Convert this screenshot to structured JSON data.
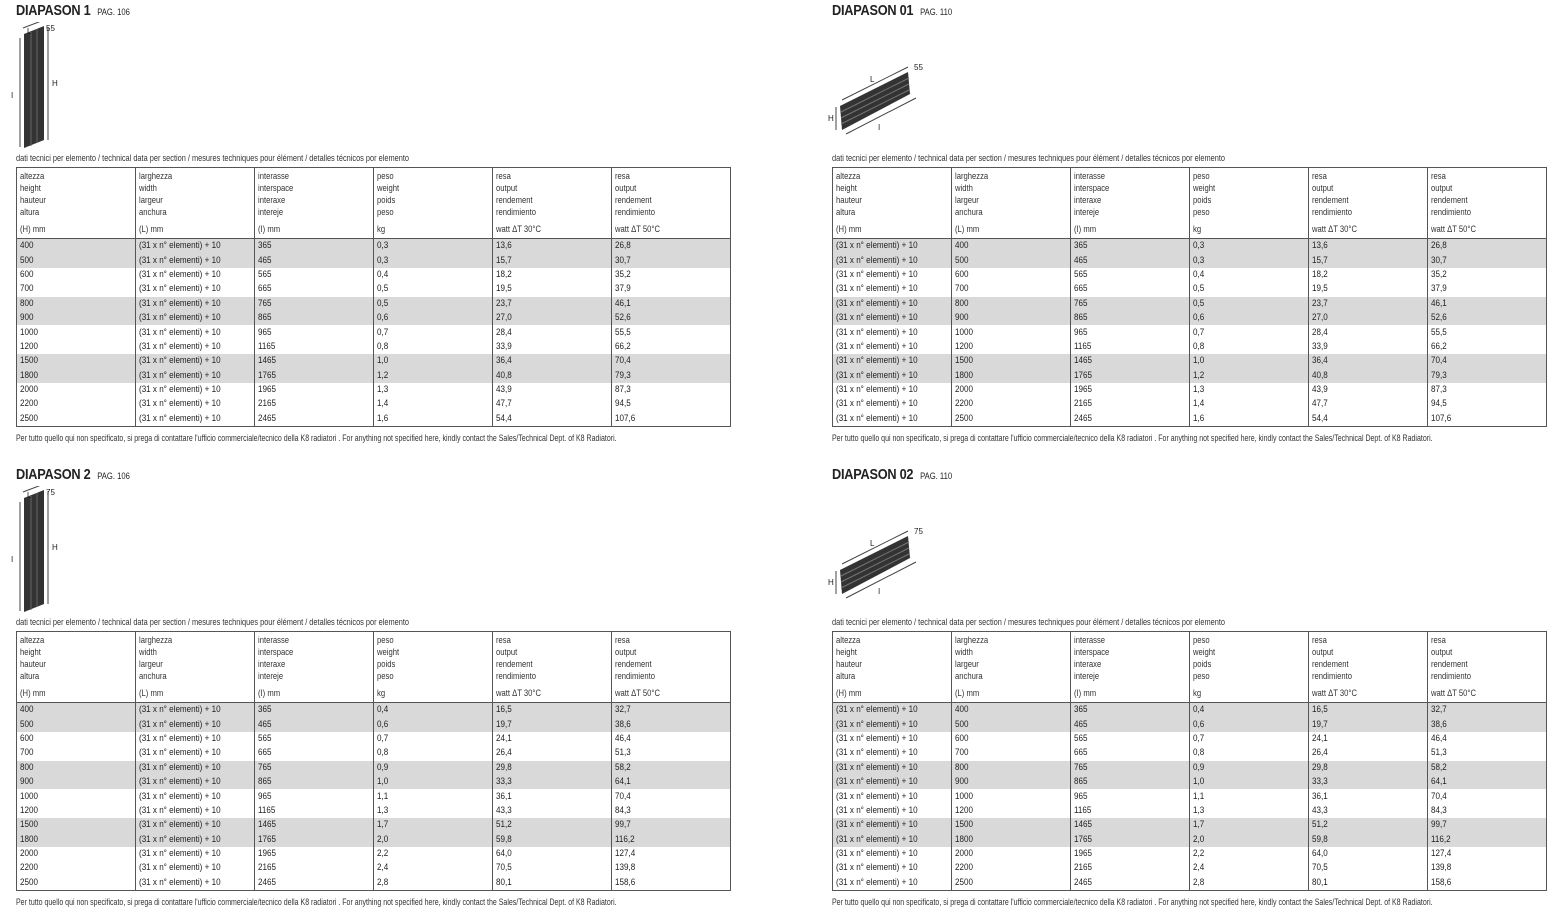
{
  "caption": "dati tecnici per elemento / technical data per section / mesures techniques pour élément / detalles técnicos por elemento",
  "note": "Per tutto quello qui non specificato, si prega di contattare l'ufficio commerciale/tecnico della K8 radiatori . For anything not specified here, kindly contact the Sales/Technical Dept. of K8 Radiatori.",
  "headers": [
    {
      "lines": [
        "altezza",
        "height",
        "hauteur",
        "altura"
      ],
      "unit": "(H) mm"
    },
    {
      "lines": [
        "larghezza",
        "width",
        "largeur",
        "anchura"
      ],
      "unit": "(L) mm"
    },
    {
      "lines": [
        "interasse",
        "interspace",
        "interaxe",
        "intereje"
      ],
      "unit": "(I) mm"
    },
    {
      "lines": [
        "peso",
        "weight",
        "poids",
        "peso"
      ],
      "unit": "kg"
    },
    {
      "lines": [
        "resa",
        "output",
        "rendement",
        "rendimiento"
      ],
      "unit": "watt ΔT 30°C"
    },
    {
      "lines": [
        "resa",
        "output",
        "rendement",
        "rendimiento"
      ],
      "unit": "watt ΔT 50°C"
    }
  ],
  "shade_color": "#d9d9d9",
  "sections": [
    {
      "title": "DIAPASON 1",
      "page": "PAG. 106",
      "orientation": "vertical",
      "dims": {
        "L": "L",
        "depth": "55",
        "H": "H",
        "I": "I"
      },
      "rows": [
        [
          "400",
          "(31 x n° elementi) + 10",
          "365",
          "0,3",
          "13,6",
          "26,8"
        ],
        [
          "500",
          "(31 x n° elementi) + 10",
          "465",
          "0,3",
          "15,7",
          "30,7"
        ],
        [
          "600",
          "(31 x n° elementi) + 10",
          "565",
          "0,4",
          "18,2",
          "35,2"
        ],
        [
          "700",
          "(31 x n° elementi) + 10",
          "665",
          "0,5",
          "19,5",
          "37,9"
        ],
        [
          "800",
          "(31 x n° elementi) + 10",
          "765",
          "0,5",
          "23,7",
          "46,1"
        ],
        [
          "900",
          "(31 x n° elementi) + 10",
          "865",
          "0,6",
          "27,0",
          "52,6"
        ],
        [
          "1000",
          "(31 x n° elementi) + 10",
          "965",
          "0,7",
          "28,4",
          "55,5"
        ],
        [
          "1200",
          "(31 x n° elementi) + 10",
          "1165",
          "0,8",
          "33,9",
          "66,2"
        ],
        [
          "1500",
          "(31 x n° elementi) + 10",
          "1465",
          "1,0",
          "36,4",
          "70,4"
        ],
        [
          "1800",
          "(31 x n° elementi) + 10",
          "1765",
          "1,2",
          "40,8",
          "79,3"
        ],
        [
          "2000",
          "(31 x n° elementi) + 10",
          "1965",
          "1,3",
          "43,9",
          "87,3"
        ],
        [
          "2200",
          "(31 x n° elementi) + 10",
          "2165",
          "1,4",
          "47,7",
          "94,5"
        ],
        [
          "2500",
          "(31 x n° elementi) + 10",
          "2465",
          "1,6",
          "54,4",
          "107,6"
        ]
      ]
    },
    {
      "title": "DIAPASON 01",
      "page": "PAG. 110",
      "orientation": "horizontal",
      "dims": {
        "L": "L",
        "depth": "55",
        "H": "H",
        "I": "I"
      },
      "rows": [
        [
          "(31 x n° elementi) + 10",
          "400",
          "365",
          "0,3",
          "13,6",
          "26,8"
        ],
        [
          "(31 x n° elementi) + 10",
          "500",
          "465",
          "0,3",
          "15,7",
          "30,7"
        ],
        [
          "(31 x n° elementi) + 10",
          "600",
          "565",
          "0,4",
          "18,2",
          "35,2"
        ],
        [
          "(31 x n° elementi) + 10",
          "700",
          "665",
          "0,5",
          "19,5",
          "37,9"
        ],
        [
          "(31 x n° elementi) + 10",
          "800",
          "765",
          "0,5",
          "23,7",
          "46,1"
        ],
        [
          "(31 x n° elementi) + 10",
          "900",
          "865",
          "0,6",
          "27,0",
          "52,6"
        ],
        [
          "(31 x n° elementi) + 10",
          "1000",
          "965",
          "0,7",
          "28,4",
          "55,5"
        ],
        [
          "(31 x n° elementi) + 10",
          "1200",
          "1165",
          "0,8",
          "33,9",
          "66,2"
        ],
        [
          "(31 x n° elementi) + 10",
          "1500",
          "1465",
          "1,0",
          "36,4",
          "70,4"
        ],
        [
          "(31 x n° elementi) + 10",
          "1800",
          "1765",
          "1,2",
          "40,8",
          "79,3"
        ],
        [
          "(31 x n° elementi) + 10",
          "2000",
          "1965",
          "1,3",
          "43,9",
          "87,3"
        ],
        [
          "(31 x n° elementi) + 10",
          "2200",
          "2165",
          "1,4",
          "47,7",
          "94,5"
        ],
        [
          "(31 x n° elementi) + 10",
          "2500",
          "2465",
          "1,6",
          "54,4",
          "107,6"
        ]
      ]
    },
    {
      "title": "DIAPASON 2",
      "page": "PAG. 106",
      "orientation": "vertical",
      "dims": {
        "L": "L",
        "depth": "75",
        "H": "H",
        "I": "I"
      },
      "rows": [
        [
          "400",
          "(31 x n° elementi) + 10",
          "365",
          "0,4",
          "16,5",
          "32,7"
        ],
        [
          "500",
          "(31 x n° elementi) + 10",
          "465",
          "0,6",
          "19,7",
          "38,6"
        ],
        [
          "600",
          "(31 x n° elementi) + 10",
          "565",
          "0,7",
          "24,1",
          "46,4"
        ],
        [
          "700",
          "(31 x n° elementi) + 10",
          "665",
          "0,8",
          "26,4",
          "51,3"
        ],
        [
          "800",
          "(31 x n° elementi) + 10",
          "765",
          "0,9",
          "29,8",
          "58,2"
        ],
        [
          "900",
          "(31 x n° elementi) + 10",
          "865",
          "1,0",
          "33,3",
          "64,1"
        ],
        [
          "1000",
          "(31 x n° elementi) + 10",
          "965",
          "1,1",
          "36,1",
          "70,4"
        ],
        [
          "1200",
          "(31 x n° elementi) + 10",
          "1165",
          "1,3",
          "43,3",
          "84,3"
        ],
        [
          "1500",
          "(31 x n° elementi) + 10",
          "1465",
          "1,7",
          "51,2",
          "99,7"
        ],
        [
          "1800",
          "(31 x n° elementi) + 10",
          "1765",
          "2,0",
          "59,8",
          "116,2"
        ],
        [
          "2000",
          "(31 x n° elementi) + 10",
          "1965",
          "2,2",
          "64,0",
          "127,4"
        ],
        [
          "2200",
          "(31 x n° elementi) + 10",
          "2165",
          "2,4",
          "70,5",
          "139,8"
        ],
        [
          "2500",
          "(31 x n° elementi) + 10",
          "2465",
          "2,8",
          "80,1",
          "158,6"
        ]
      ]
    },
    {
      "title": "DIAPASON 02",
      "page": "PAG. 110",
      "orientation": "horizontal",
      "dims": {
        "L": "L",
        "depth": "75",
        "H": "H",
        "I": "I"
      },
      "rows": [
        [
          "(31 x n° elementi) + 10",
          "400",
          "365",
          "0,4",
          "16,5",
          "32,7"
        ],
        [
          "(31 x n° elementi) + 10",
          "500",
          "465",
          "0,6",
          "19,7",
          "38,6"
        ],
        [
          "(31 x n° elementi) + 10",
          "600",
          "565",
          "0,7",
          "24,1",
          "46,4"
        ],
        [
          "(31 x n° elementi) + 10",
          "700",
          "665",
          "0,8",
          "26,4",
          "51,3"
        ],
        [
          "(31 x n° elementi) + 10",
          "800",
          "765",
          "0,9",
          "29,8",
          "58,2"
        ],
        [
          "(31 x n° elementi) + 10",
          "900",
          "865",
          "1,0",
          "33,3",
          "64,1"
        ],
        [
          "(31 x n° elementi) + 10",
          "1000",
          "965",
          "1,1",
          "36,1",
          "70,4"
        ],
        [
          "(31 x n° elementi) + 10",
          "1200",
          "1165",
          "1,3",
          "43,3",
          "84,3"
        ],
        [
          "(31 x n° elementi) + 10",
          "1500",
          "1465",
          "1,7",
          "51,2",
          "99,7"
        ],
        [
          "(31 x n° elementi) + 10",
          "1800",
          "1765",
          "2,0",
          "59,8",
          "116,2"
        ],
        [
          "(31 x n° elementi) + 10",
          "2000",
          "1965",
          "2,2",
          "64,0",
          "127,4"
        ],
        [
          "(31 x n° elementi) + 10",
          "2200",
          "2165",
          "2,4",
          "70,5",
          "139,8"
        ],
        [
          "(31 x n° elementi) + 10",
          "2500",
          "2465",
          "2,8",
          "80,1",
          "158,6"
        ]
      ]
    }
  ]
}
